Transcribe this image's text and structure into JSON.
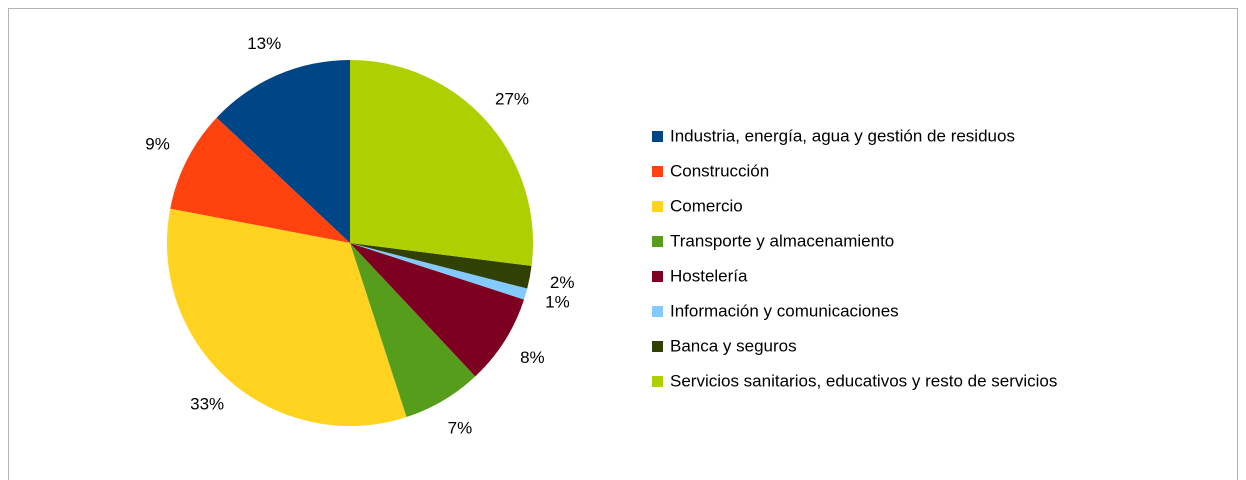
{
  "chart_data": {
    "type": "pie",
    "categories": [
      "Industria, energía, agua y gestión de residuos",
      "Construcción",
      "Comercio",
      "Transporte y almacenamiento",
      "Hostelería",
      "Información y comunicaciones",
      "Banca y seguros",
      "Servicios sanitarios, educativos y resto de servicios"
    ],
    "values": [
      13,
      9,
      33,
      7,
      8,
      1,
      2,
      27
    ],
    "value_labels": [
      "13%",
      "9%",
      "33%",
      "7%",
      "8%",
      "1%",
      "2%",
      "27%"
    ],
    "colors": [
      "#004586",
      "#ff420e",
      "#ffd320",
      "#579d1c",
      "#7e0021",
      "#83caff",
      "#314004",
      "#aecf00"
    ],
    "legend": "right"
  }
}
